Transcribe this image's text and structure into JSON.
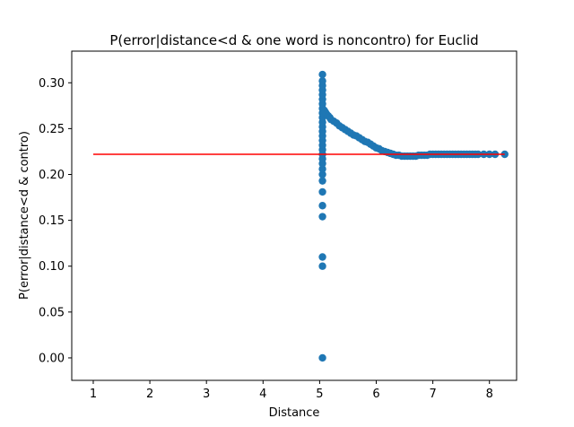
{
  "chart_data": {
    "type": "scatter",
    "title": "P(error|distance<d & one word is noncontro) for Euclid",
    "xlabel": "Distance",
    "ylabel": "P(error|distance<d & contro)",
    "xlim": [
      0.62,
      8.48
    ],
    "ylim": [
      -0.0245,
      0.3345
    ],
    "xticks": [
      1,
      2,
      3,
      4,
      5,
      6,
      7,
      8
    ],
    "yticks": [
      0.0,
      0.05,
      0.1,
      0.15,
      0.2,
      0.25,
      0.3
    ],
    "ytick_labels": [
      "0.00",
      "0.05",
      "0.10",
      "0.15",
      "0.20",
      "0.25",
      "0.30"
    ],
    "grid": false,
    "series": [
      {
        "type": "scatter",
        "color": "#1f77b4",
        "points": [
          [
            5.05,
            0.0
          ],
          [
            5.05,
            0.1
          ],
          [
            5.05,
            0.11
          ],
          [
            5.05,
            0.154
          ],
          [
            5.05,
            0.166
          ],
          [
            5.05,
            0.181
          ],
          [
            5.05,
            0.193
          ],
          [
            5.05,
            0.2
          ],
          [
            5.05,
            0.206
          ],
          [
            5.05,
            0.212
          ],
          [
            5.05,
            0.217
          ],
          [
            5.05,
            0.222
          ],
          [
            5.05,
            0.227
          ],
          [
            5.05,
            0.232
          ],
          [
            5.05,
            0.237
          ],
          [
            5.05,
            0.242
          ],
          [
            5.05,
            0.247
          ],
          [
            5.05,
            0.252
          ],
          [
            5.05,
            0.257
          ],
          [
            5.05,
            0.262
          ],
          [
            5.05,
            0.267
          ],
          [
            5.05,
            0.272
          ],
          [
            5.05,
            0.277
          ],
          [
            5.05,
            0.282
          ],
          [
            5.05,
            0.287
          ],
          [
            5.05,
            0.292
          ],
          [
            5.05,
            0.297
          ],
          [
            5.05,
            0.302
          ],
          [
            5.05,
            0.309
          ],
          [
            5.08,
            0.27
          ],
          [
            5.1,
            0.268
          ],
          [
            5.12,
            0.266
          ],
          [
            5.15,
            0.264
          ],
          [
            5.18,
            0.262
          ],
          [
            5.2,
            0.26
          ],
          [
            5.25,
            0.258
          ],
          [
            5.3,
            0.256
          ],
          [
            5.35,
            0.253
          ],
          [
            5.4,
            0.251
          ],
          [
            5.45,
            0.249
          ],
          [
            5.5,
            0.247
          ],
          [
            5.55,
            0.245
          ],
          [
            5.6,
            0.243
          ],
          [
            5.65,
            0.242
          ],
          [
            5.7,
            0.24
          ],
          [
            5.75,
            0.238
          ],
          [
            5.8,
            0.236
          ],
          [
            5.85,
            0.235
          ],
          [
            5.9,
            0.233
          ],
          [
            5.95,
            0.231
          ],
          [
            6.0,
            0.229
          ],
          [
            6.05,
            0.228
          ],
          [
            6.1,
            0.226
          ],
          [
            6.15,
            0.225
          ],
          [
            6.2,
            0.224
          ],
          [
            6.25,
            0.223
          ],
          [
            6.3,
            0.222
          ],
          [
            6.35,
            0.221
          ],
          [
            6.4,
            0.221
          ],
          [
            6.45,
            0.22
          ],
          [
            6.5,
            0.22
          ],
          [
            6.55,
            0.22
          ],
          [
            6.6,
            0.22
          ],
          [
            6.65,
            0.22
          ],
          [
            6.7,
            0.22
          ],
          [
            6.75,
            0.221
          ],
          [
            6.8,
            0.221
          ],
          [
            6.85,
            0.221
          ],
          [
            6.9,
            0.221
          ],
          [
            6.95,
            0.222
          ],
          [
            7.0,
            0.222
          ],
          [
            7.05,
            0.222
          ],
          [
            7.1,
            0.222
          ],
          [
            7.15,
            0.222
          ],
          [
            7.2,
            0.222
          ],
          [
            7.25,
            0.222
          ],
          [
            7.3,
            0.222
          ],
          [
            7.35,
            0.222
          ],
          [
            7.4,
            0.222
          ],
          [
            7.45,
            0.222
          ],
          [
            7.5,
            0.222
          ],
          [
            7.55,
            0.222
          ],
          [
            7.6,
            0.222
          ],
          [
            7.65,
            0.222
          ],
          [
            7.7,
            0.222
          ],
          [
            7.75,
            0.222
          ],
          [
            7.8,
            0.222
          ],
          [
            7.9,
            0.222
          ],
          [
            8.0,
            0.222
          ],
          [
            8.1,
            0.222
          ],
          [
            8.27,
            0.222
          ]
        ]
      },
      {
        "type": "line",
        "color": "#ff0000",
        "points": [
          [
            1.0,
            0.222
          ],
          [
            8.27,
            0.222
          ]
        ]
      }
    ]
  }
}
